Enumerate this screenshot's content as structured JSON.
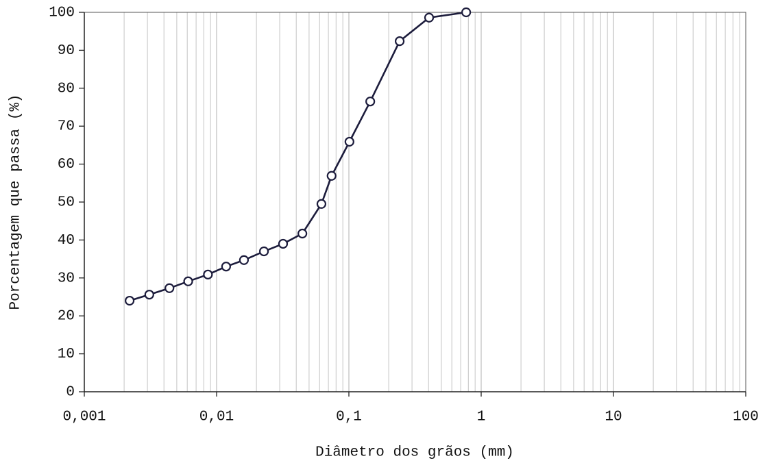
{
  "chart_data": {
    "type": "line",
    "xlabel": "Diâmetro dos grãos (mm)",
    "ylabel": "Porcentagem que passa (%)",
    "x": [
      0.0022,
      0.0031,
      0.0044,
      0.0061,
      0.0086,
      0.0118,
      0.0161,
      0.0228,
      0.0318,
      0.0445,
      0.062,
      0.074,
      0.101,
      0.145,
      0.242,
      0.404,
      0.77
    ],
    "values": [
      24.0,
      25.6,
      27.3,
      29.1,
      30.9,
      33.0,
      34.7,
      37.0,
      39.0,
      41.7,
      49.5,
      56.9,
      65.9,
      76.5,
      92.4,
      98.6,
      100
    ],
    "color": "#1c1c3c",
    "xlog": true,
    "xlim": [
      0.001,
      100
    ],
    "ylim": [
      0,
      100
    ],
    "xticks": [
      {
        "value": 0.001,
        "label": "0,001"
      },
      {
        "value": 0.01,
        "label": "0,01"
      },
      {
        "value": 0.1,
        "label": "0,1"
      },
      1,
      10,
      100
    ],
    "yticks": [
      0,
      10,
      20,
      30,
      40,
      50,
      60,
      70,
      80,
      90,
      100
    ],
    "grid": "x",
    "minor_grid": true
  }
}
